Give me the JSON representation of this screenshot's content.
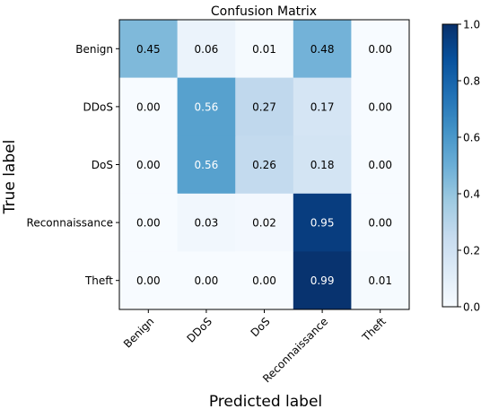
{
  "chart_data": {
    "type": "heatmap",
    "title": "Confusion Matrix",
    "xlabel": "Predicted label",
    "ylabel": "True label",
    "x_categories": [
      "Benign",
      "DDoS",
      "DoS",
      "Reconnaissance",
      "Theft"
    ],
    "y_categories": [
      "Benign",
      "DDoS",
      "DoS",
      "Reconnaissance",
      "Theft"
    ],
    "values": [
      [
        0.45,
        0.06,
        0.01,
        0.48,
        0.0
      ],
      [
        0.0,
        0.56,
        0.27,
        0.17,
        0.0
      ],
      [
        0.0,
        0.56,
        0.26,
        0.18,
        0.0
      ],
      [
        0.0,
        0.03,
        0.02,
        0.95,
        0.0
      ],
      [
        0.0,
        0.0,
        0.0,
        0.99,
        0.01
      ]
    ],
    "value_labels": [
      [
        "0.45",
        "0.06",
        "0.01",
        "0.48",
        "0.00"
      ],
      [
        "0.00",
        "0.56",
        "0.27",
        "0.17",
        "0.00"
      ],
      [
        "0.00",
        "0.56",
        "0.26",
        "0.18",
        "0.00"
      ],
      [
        "0.00",
        "0.03",
        "0.02",
        "0.95",
        "0.00"
      ],
      [
        "0.00",
        "0.00",
        "0.00",
        "0.99",
        "0.01"
      ]
    ],
    "colorbar": {
      "range": [
        0.0,
        1.0
      ],
      "ticks": [
        "0.0",
        "0.2",
        "0.4",
        "0.6",
        "0.8",
        "1.0"
      ],
      "colormap": "Blues"
    },
    "grid": false
  }
}
